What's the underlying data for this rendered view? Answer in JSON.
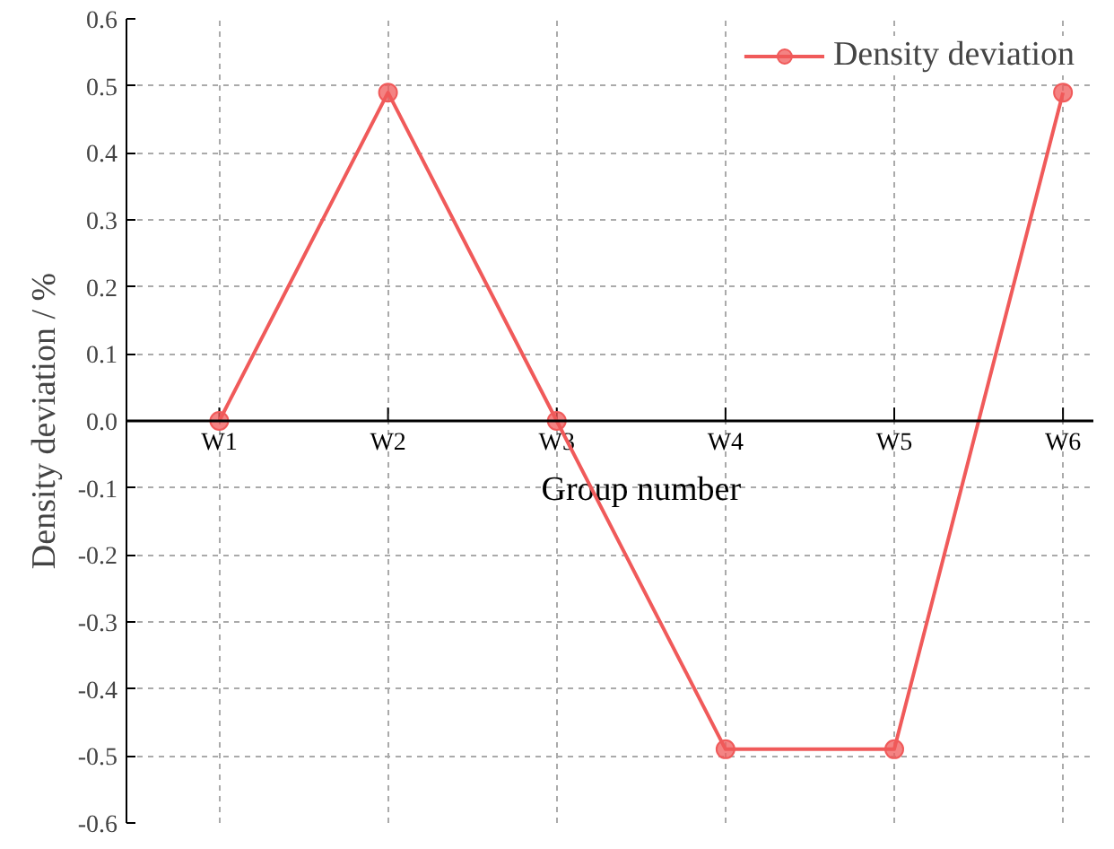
{
  "chart_data": {
    "type": "line",
    "xlabel": "Group number",
    "ylabel": "Density deviation / %",
    "categories": [
      "W1",
      "W2",
      "W3",
      "W4",
      "W5",
      "W6"
    ],
    "series": [
      {
        "name": "Density deviation",
        "color": "#f05a5a",
        "values": [
          0,
          0.49,
          0,
          -0.49,
          -0.49,
          0.49
        ]
      }
    ],
    "ylim": [
      -0.6,
      0.6
    ],
    "yticks": [
      -0.6,
      -0.5,
      -0.4,
      -0.3,
      -0.2,
      -0.1,
      {
        "value": 0,
        "label": "0.0"
      },
      0.1,
      0.2,
      0.3,
      0.4,
      0.5,
      0.6
    ],
    "grid": true,
    "legend": "top right",
    "marker": "circle",
    "line_style": "solid"
  }
}
